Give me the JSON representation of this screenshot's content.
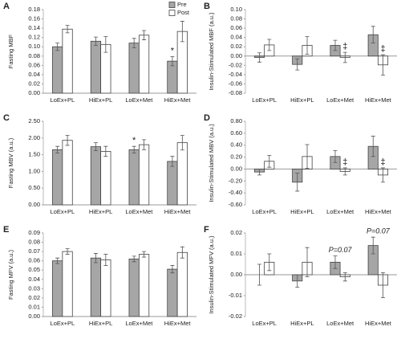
{
  "chart_data": [
    {
      "type": "bar",
      "panel": "A",
      "ylabel": "Fasting MBF",
      "legend": "upper right",
      "categories": [
        "LoEx+PL",
        "HiEx+PL",
        "LoEx+Met",
        "HiEx+Met"
      ],
      "series": [
        {
          "name": "Pre",
          "color": "#a6a6a6",
          "values": [
            0.1,
            0.112,
            0.108,
            0.069
          ],
          "errors": [
            0.008,
            0.009,
            0.01,
            0.01
          ],
          "annotations": [
            null,
            null,
            null,
            "*"
          ]
        },
        {
          "name": "Post",
          "color": "#ffffff",
          "values": [
            0.138,
            0.105,
            0.125,
            0.133
          ],
          "errors": [
            0.008,
            0.017,
            0.01,
            0.022
          ]
        }
      ],
      "ylim": [
        0,
        0.18
      ],
      "yticks": [
        {
          "value": 0,
          "label": "0.00"
        },
        0.02,
        0.04,
        0.06,
        0.08,
        {
          "value": 0.1,
          "label": "0.10"
        },
        0.12,
        0.14,
        0.16,
        0.18
      ]
    },
    {
      "type": "bar",
      "panel": "B",
      "ylabel": "Insulin-Stimulated MBF (a.u.)",
      "categories": [
        "LoEx+PL",
        "HiEx+PL",
        "LoEx+Met",
        "HiEx+Met"
      ],
      "series": [
        {
          "name": "Pre",
          "color": "#a6a6a6",
          "values": [
            -0.003,
            -0.018,
            0.023,
            0.046
          ],
          "errors": [
            0.01,
            0.012,
            0.011,
            0.018
          ]
        },
        {
          "name": "Post",
          "color": "#ffffff",
          "values": [
            0.024,
            0.023,
            -0.003,
            -0.019
          ],
          "errors": [
            0.012,
            0.019,
            0.011,
            0.022
          ],
          "annotations": [
            null,
            null,
            "‡",
            "‡"
          ]
        }
      ],
      "ylim": [
        -0.08,
        0.1
      ],
      "yticks": [
        -0.08,
        -0.06,
        -0.04,
        -0.02,
        {
          "value": 0,
          "label": "0.00"
        },
        0.02,
        0.04,
        0.06,
        0.08,
        {
          "value": 0.1,
          "label": "0.10"
        }
      ]
    },
    {
      "type": "bar",
      "panel": "C",
      "ylabel": "Fasting MBV (a.u.)",
      "categories": [
        "LoEx+PL",
        "HiEx+PL",
        "LoEx+Met",
        "HiEx+Met"
      ],
      "series": [
        {
          "name": "Pre",
          "color": "#a6a6a6",
          "values": [
            1.65,
            1.74,
            1.65,
            1.3
          ],
          "errors": [
            0.1,
            0.12,
            0.1,
            0.15
          ],
          "annotations": [
            null,
            null,
            "*",
            null
          ]
        },
        {
          "name": "Post",
          "color": "#ffffff",
          "values": [
            1.93,
            1.6,
            1.8,
            1.86
          ],
          "errors": [
            0.15,
            0.15,
            0.15,
            0.22
          ]
        }
      ],
      "ylim": [
        0,
        2.5
      ],
      "yticks": [
        {
          "value": 0,
          "label": "0.00"
        },
        {
          "value": 0.5,
          "label": "0.50"
        },
        {
          "value": 1,
          "label": "1.00"
        },
        {
          "value": 1.5,
          "label": "1.50"
        },
        {
          "value": 2,
          "label": "2.00"
        },
        {
          "value": 2.5,
          "label": "2.50"
        }
      ]
    },
    {
      "type": "bar",
      "panel": "D",
      "ylabel": "Insulin-Stimulated MBV (a.u.)",
      "categories": [
        "LoEx+PL",
        "HiEx+PL",
        "LoEx+Met",
        "HiEx+Met"
      ],
      "series": [
        {
          "name": "Pre",
          "color": "#a6a6a6",
          "values": [
            -0.05,
            -0.22,
            0.21,
            0.38
          ],
          "errors": [
            0.05,
            0.15,
            0.1,
            0.17
          ]
        },
        {
          "name": "Post",
          "color": "#ffffff",
          "values": [
            0.13,
            0.21,
            -0.04,
            -0.1
          ],
          "errors": [
            0.1,
            0.2,
            0.06,
            0.12
          ],
          "annotations": [
            null,
            null,
            "‡",
            "‡"
          ]
        }
      ],
      "ylim": [
        -0.6,
        0.8
      ],
      "yticks": [
        {
          "value": -0.6,
          "label": "-0.60"
        },
        {
          "value": -0.4,
          "label": "-0.40"
        },
        {
          "value": -0.2,
          "label": "-0.20"
        },
        {
          "value": 0,
          "label": "0.00"
        },
        {
          "value": 0.2,
          "label": "0.20"
        },
        {
          "value": 0.4,
          "label": "0.40"
        },
        {
          "value": 0.6,
          "label": "0.60"
        },
        {
          "value": 0.8,
          "label": "0.80"
        }
      ]
    },
    {
      "type": "bar",
      "panel": "E",
      "ylabel": "Fasting MFV (a.u.)",
      "categories": [
        "LoEx+PL",
        "HiEx+PL",
        "LoEx+Met",
        "HiEx+Met"
      ],
      "series": [
        {
          "name": "Pre",
          "color": "#a6a6a6",
          "values": [
            0.06,
            0.063,
            0.062,
            0.051
          ],
          "errors": [
            0.003,
            0.005,
            0.003,
            0.004
          ]
        },
        {
          "name": "Post",
          "color": "#ffffff",
          "values": [
            0.07,
            0.061,
            0.067,
            0.069
          ],
          "errors": [
            0.003,
            0.006,
            0.003,
            0.006
          ]
        }
      ],
      "ylim": [
        0,
        0.09
      ],
      "yticks": [
        {
          "value": 0,
          "label": "0.00"
        },
        0.01,
        0.02,
        0.03,
        0.04,
        0.05,
        0.06,
        0.07,
        0.08,
        0.09
      ]
    },
    {
      "type": "bar",
      "panel": "F",
      "ylabel": "Insulin-Stimulated MFV (a.u.)",
      "categories": [
        "LoEx+PL",
        "HiEx+PL",
        "LoEx+Met",
        "HiEx+Met"
      ],
      "annotations": [
        null,
        null,
        "P=0.07",
        "P=0.07"
      ],
      "series": [
        {
          "name": "Pre",
          "color": "#a6a6a6",
          "values": [
            0.0,
            -0.003,
            0.006,
            0.014
          ],
          "errors": [
            0.005,
            0.003,
            0.003,
            0.004
          ]
        },
        {
          "name": "Post",
          "color": "#ffffff",
          "values": [
            0.006,
            0.006,
            -0.001,
            -0.005
          ],
          "errors": [
            0.004,
            0.007,
            0.002,
            0.006
          ]
        }
      ],
      "ylim": [
        -0.02,
        0.02
      ],
      "yticks": [
        -0.02,
        -0.01,
        {
          "value": 0,
          "label": "0.00"
        },
        0.01,
        0.02
      ]
    }
  ]
}
